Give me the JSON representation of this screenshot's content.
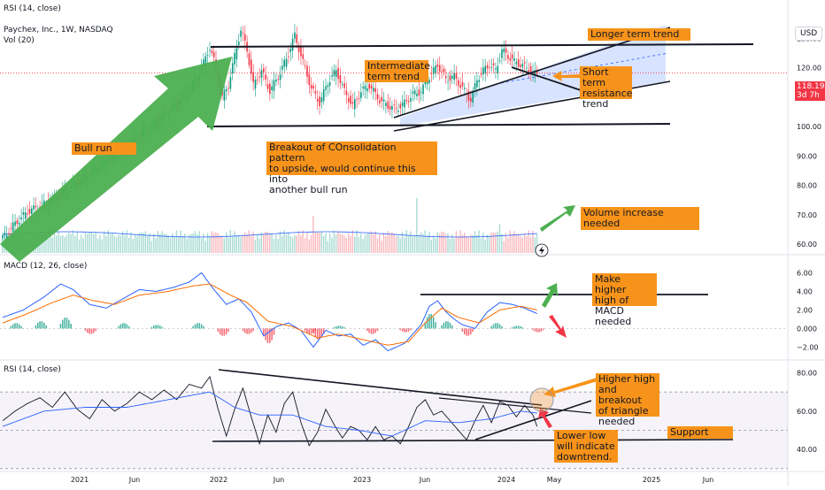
{
  "header": {
    "top_label": "RSI (14, close)",
    "symbol_title": "Paychex, Inc., 1W, NASDAQ",
    "volume_label": "Vol (20)",
    "currency_button": "USD"
  },
  "price_badge": {
    "price": "118.19",
    "countdown": "3d 7h",
    "color": "#f23645"
  },
  "colors": {
    "up": "#089981",
    "down": "#f23645",
    "macd_line": "#2962ff",
    "signal_line": "#ff6d00",
    "rsi_line": "#131722",
    "rsi_ma": "#2962ff",
    "channel_fill": "#2962ff",
    "annotation_bg": "#f7931a",
    "green_arrow": "#4caf50",
    "red_arrow": "#f23645"
  },
  "x_axis": {
    "labels": [
      "2021",
      "Jun",
      "2022",
      "Jun",
      "2023",
      "Jun",
      "2024",
      "May",
      "2025",
      "Jun"
    ]
  },
  "chart_data": [
    {
      "type": "candlestick",
      "title": "Paychex, Inc., 1W, NASDAQ",
      "y_axis_labels": [
        "130.00",
        "120.00",
        "110.00",
        "100.00",
        "90.00",
        "80.00",
        "70.00",
        "60.00"
      ],
      "ylim": [
        57,
        137
      ],
      "last_price": 118.19,
      "close_path": [
        {
          "t": 0,
          "v": 62
        },
        {
          "t": 6,
          "v": 67
        },
        {
          "t": 12,
          "v": 71
        },
        {
          "t": 18,
          "v": 73
        },
        {
          "t": 24,
          "v": 75
        },
        {
          "t": 30,
          "v": 78
        },
        {
          "t": 36,
          "v": 81
        },
        {
          "t": 42,
          "v": 84
        },
        {
          "t": 48,
          "v": 87
        },
        {
          "t": 54,
          "v": 90
        },
        {
          "t": 60,
          "v": 92
        },
        {
          "t": 66,
          "v": 97
        },
        {
          "t": 72,
          "v": 100
        },
        {
          "t": 78,
          "v": 104
        },
        {
          "t": 84,
          "v": 108
        },
        {
          "t": 90,
          "v": 112
        },
        {
          "t": 95,
          "v": 118
        },
        {
          "t": 100,
          "v": 127
        },
        {
          "t": 103,
          "v": 120
        },
        {
          "t": 106,
          "v": 110
        },
        {
          "t": 109,
          "v": 114
        },
        {
          "t": 112,
          "v": 124
        },
        {
          "t": 115,
          "v": 133
        },
        {
          "t": 118,
          "v": 126
        },
        {
          "t": 121,
          "v": 114
        },
        {
          "t": 125,
          "v": 119
        },
        {
          "t": 129,
          "v": 112
        },
        {
          "t": 133,
          "v": 117
        },
        {
          "t": 137,
          "v": 123
        },
        {
          "t": 141,
          "v": 131
        },
        {
          "t": 145,
          "v": 122
        },
        {
          "t": 149,
          "v": 113
        },
        {
          "t": 153,
          "v": 108
        },
        {
          "t": 157,
          "v": 115
        },
        {
          "t": 161,
          "v": 119
        },
        {
          "t": 165,
          "v": 112
        },
        {
          "t": 169,
          "v": 107
        },
        {
          "t": 173,
          "v": 112
        },
        {
          "t": 177,
          "v": 114
        },
        {
          "t": 182,
          "v": 109
        },
        {
          "t": 186,
          "v": 107
        },
        {
          "t": 190,
          "v": 106
        },
        {
          "t": 194,
          "v": 108
        },
        {
          "t": 198,
          "v": 111
        },
        {
          "t": 202,
          "v": 112
        },
        {
          "t": 206,
          "v": 117
        },
        {
          "t": 210,
          "v": 121
        },
        {
          "t": 214,
          "v": 116
        },
        {
          "t": 218,
          "v": 117
        },
        {
          "t": 222,
          "v": 113
        },
        {
          "t": 226,
          "v": 109
        },
        {
          "t": 229,
          "v": 116
        },
        {
          "t": 232,
          "v": 119
        },
        {
          "t": 235,
          "v": 121
        },
        {
          "t": 238,
          "v": 119
        },
        {
          "t": 241,
          "v": 126
        },
        {
          "t": 244,
          "v": 124
        },
        {
          "t": 247,
          "v": 122
        },
        {
          "t": 250,
          "v": 121
        },
        {
          "t": 253,
          "v": 120
        },
        {
          "t": 256,
          "v": 118
        },
        {
          "t": 258,
          "v": 118.19
        }
      ],
      "volume_label": "Vol (20)",
      "volume_spikes": [
        {
          "t": 150,
          "v": 2.2
        },
        {
          "t": 200,
          "v": 3.4
        },
        {
          "t": 240,
          "v": 1.7
        }
      ]
    },
    {
      "type": "macd",
      "title": "MACD (12, 26, close)",
      "y_axis_labels": [
        "6.00",
        "4.00",
        "2.00",
        "0.000",
        "−2.00"
      ],
      "ylim": [
        -3.2,
        7
      ],
      "macd_path": [
        {
          "t": 0,
          "v": 1.2
        },
        {
          "t": 10,
          "v": 2.0
        },
        {
          "t": 20,
          "v": 3.4
        },
        {
          "t": 28,
          "v": 4.8
        },
        {
          "t": 34,
          "v": 4.2
        },
        {
          "t": 42,
          "v": 2.6
        },
        {
          "t": 50,
          "v": 2.2
        },
        {
          "t": 58,
          "v": 3.2
        },
        {
          "t": 66,
          "v": 4.2
        },
        {
          "t": 74,
          "v": 4.0
        },
        {
          "t": 82,
          "v": 4.4
        },
        {
          "t": 90,
          "v": 5.0
        },
        {
          "t": 96,
          "v": 6.0
        },
        {
          "t": 102,
          "v": 4.2
        },
        {
          "t": 108,
          "v": 2.6
        },
        {
          "t": 114,
          "v": 3.2
        },
        {
          "t": 120,
          "v": 1.8
        },
        {
          "t": 126,
          "v": -0.8
        },
        {
          "t": 132,
          "v": 0.2
        },
        {
          "t": 138,
          "v": 0.6
        },
        {
          "t": 144,
          "v": -0.2
        },
        {
          "t": 150,
          "v": -2.0
        },
        {
          "t": 156,
          "v": -0.2
        },
        {
          "t": 162,
          "v": -0.8
        },
        {
          "t": 168,
          "v": -0.6
        },
        {
          "t": 174,
          "v": -1.8
        },
        {
          "t": 180,
          "v": -1.2
        },
        {
          "t": 186,
          "v": -2.4
        },
        {
          "t": 194,
          "v": -1.6
        },
        {
          "t": 202,
          "v": 0.4
        },
        {
          "t": 206,
          "v": 2.4
        },
        {
          "t": 210,
          "v": 3.0
        },
        {
          "t": 214,
          "v": 1.8
        },
        {
          "t": 218,
          "v": 1.0
        },
        {
          "t": 222,
          "v": 0.4
        },
        {
          "t": 228,
          "v": 0.0
        },
        {
          "t": 234,
          "v": 1.8
        },
        {
          "t": 240,
          "v": 2.8
        },
        {
          "t": 246,
          "v": 2.6
        },
        {
          "t": 252,
          "v": 2.2
        },
        {
          "t": 258,
          "v": 1.6
        }
      ],
      "signal_path": [
        {
          "t": 0,
          "v": 0.6
        },
        {
          "t": 12,
          "v": 1.6
        },
        {
          "t": 24,
          "v": 2.8
        },
        {
          "t": 34,
          "v": 3.6
        },
        {
          "t": 44,
          "v": 3.0
        },
        {
          "t": 54,
          "v": 2.6
        },
        {
          "t": 66,
          "v": 3.6
        },
        {
          "t": 80,
          "v": 4.0
        },
        {
          "t": 92,
          "v": 4.6
        },
        {
          "t": 100,
          "v": 4.8
        },
        {
          "t": 110,
          "v": 3.6
        },
        {
          "t": 118,
          "v": 2.8
        },
        {
          "t": 128,
          "v": 0.8
        },
        {
          "t": 140,
          "v": 0.2
        },
        {
          "t": 152,
          "v": -1.0
        },
        {
          "t": 162,
          "v": -0.6
        },
        {
          "t": 174,
          "v": -1.2
        },
        {
          "t": 186,
          "v": -1.8
        },
        {
          "t": 196,
          "v": -1.4
        },
        {
          "t": 204,
          "v": 0.6
        },
        {
          "t": 212,
          "v": 2.2
        },
        {
          "t": 220,
          "v": 1.2
        },
        {
          "t": 230,
          "v": 0.6
        },
        {
          "t": 240,
          "v": 2.0
        },
        {
          "t": 250,
          "v": 2.4
        },
        {
          "t": 258,
          "v": 2.0
        }
      ],
      "histogram": [
        {
          "t": 4,
          "v": 0.6
        },
        {
          "t": 16,
          "v": 0.8
        },
        {
          "t": 28,
          "v": 1.2
        },
        {
          "t": 40,
          "v": -0.6
        },
        {
          "t": 56,
          "v": 0.6
        },
        {
          "t": 72,
          "v": 0.4
        },
        {
          "t": 92,
          "v": 0.6
        },
        {
          "t": 104,
          "v": -0.8
        },
        {
          "t": 116,
          "v": -0.6
        },
        {
          "t": 126,
          "v": -1.6
        },
        {
          "t": 146,
          "v": -0.6
        },
        {
          "t": 150,
          "v": -1.2
        },
        {
          "t": 160,
          "v": 0.3
        },
        {
          "t": 176,
          "v": -0.6
        },
        {
          "t": 192,
          "v": -0.4
        },
        {
          "t": 204,
          "v": 1.6
        },
        {
          "t": 212,
          "v": 0.8
        },
        {
          "t": 222,
          "v": -0.8
        },
        {
          "t": 236,
          "v": 0.6
        },
        {
          "t": 246,
          "v": 0.3
        },
        {
          "t": 256,
          "v": -0.4
        }
      ]
    },
    {
      "type": "rsi",
      "title": "RSI (14, close)",
      "y_axis_labels": [
        "80.00",
        "60.00",
        "40.00"
      ],
      "ylim": [
        29,
        83
      ],
      "band": [
        30,
        70
      ],
      "rsi_path": [
        {
          "t": 0,
          "v": 55
        },
        {
          "t": 6,
          "v": 60
        },
        {
          "t": 12,
          "v": 64
        },
        {
          "t": 18,
          "v": 67
        },
        {
          "t": 24,
          "v": 62
        },
        {
          "t": 30,
          "v": 70
        },
        {
          "t": 36,
          "v": 61
        },
        {
          "t": 42,
          "v": 56
        },
        {
          "t": 48,
          "v": 66
        },
        {
          "t": 54,
          "v": 60
        },
        {
          "t": 60,
          "v": 64
        },
        {
          "t": 66,
          "v": 70
        },
        {
          "t": 72,
          "v": 66
        },
        {
          "t": 78,
          "v": 71
        },
        {
          "t": 84,
          "v": 66
        },
        {
          "t": 90,
          "v": 74
        },
        {
          "t": 96,
          "v": 72
        },
        {
          "t": 100,
          "v": 78
        },
        {
          "t": 104,
          "v": 61
        },
        {
          "t": 108,
          "v": 47
        },
        {
          "t": 112,
          "v": 61
        },
        {
          "t": 116,
          "v": 72
        },
        {
          "t": 120,
          "v": 57
        },
        {
          "t": 124,
          "v": 43
        },
        {
          "t": 128,
          "v": 58
        },
        {
          "t": 132,
          "v": 49
        },
        {
          "t": 136,
          "v": 64
        },
        {
          "t": 140,
          "v": 70
        },
        {
          "t": 144,
          "v": 54
        },
        {
          "t": 148,
          "v": 42
        },
        {
          "t": 152,
          "v": 49
        },
        {
          "t": 156,
          "v": 61
        },
        {
          "t": 160,
          "v": 53
        },
        {
          "t": 164,
          "v": 46
        },
        {
          "t": 168,
          "v": 52
        },
        {
          "t": 172,
          "v": 50
        },
        {
          "t": 176,
          "v": 45
        },
        {
          "t": 180,
          "v": 52
        },
        {
          "t": 184,
          "v": 45
        },
        {
          "t": 188,
          "v": 47
        },
        {
          "t": 192,
          "v": 43
        },
        {
          "t": 196,
          "v": 52
        },
        {
          "t": 200,
          "v": 62
        },
        {
          "t": 204,
          "v": 66
        },
        {
          "t": 208,
          "v": 58
        },
        {
          "t": 212,
          "v": 60
        },
        {
          "t": 216,
          "v": 55
        },
        {
          "t": 220,
          "v": 50
        },
        {
          "t": 224,
          "v": 45
        },
        {
          "t": 228,
          "v": 55
        },
        {
          "t": 232,
          "v": 63
        },
        {
          "t": 236,
          "v": 54
        },
        {
          "t": 240,
          "v": 65
        },
        {
          "t": 244,
          "v": 63
        },
        {
          "t": 248,
          "v": 57
        },
        {
          "t": 252,
          "v": 63
        },
        {
          "t": 256,
          "v": 58
        },
        {
          "t": 258,
          "v": 52
        }
      ],
      "rsi_ma_path": [
        {
          "t": 0,
          "v": 52
        },
        {
          "t": 20,
          "v": 60
        },
        {
          "t": 40,
          "v": 62
        },
        {
          "t": 60,
          "v": 62
        },
        {
          "t": 80,
          "v": 66
        },
        {
          "t": 100,
          "v": 70
        },
        {
          "t": 112,
          "v": 62
        },
        {
          "t": 124,
          "v": 58
        },
        {
          "t": 140,
          "v": 58
        },
        {
          "t": 156,
          "v": 52
        },
        {
          "t": 172,
          "v": 50
        },
        {
          "t": 188,
          "v": 47
        },
        {
          "t": 204,
          "v": 55
        },
        {
          "t": 220,
          "v": 54
        },
        {
          "t": 236,
          "v": 56
        },
        {
          "t": 250,
          "v": 60
        },
        {
          "t": 258,
          "v": 59
        }
      ]
    }
  ],
  "annotations": {
    "bull_run": "Bull run",
    "breakout": "Breakout of COnsolidation pattern\nto upside, would continue this into\nanother bull run",
    "intermediate": "Intermediate\nterm trend",
    "longer_term": "Longer term trend",
    "short_term": "Short term\nresistance\ntrend",
    "volume": "Volume increase needed",
    "macd": "Make higher\nhigh of MACD\nneeded",
    "rsi_higher": "Higher high\nand breakout\nof triangle\nneeded",
    "lower_low": "Lower low\nwill indicate\ndowntrend.",
    "support": "Support"
  }
}
